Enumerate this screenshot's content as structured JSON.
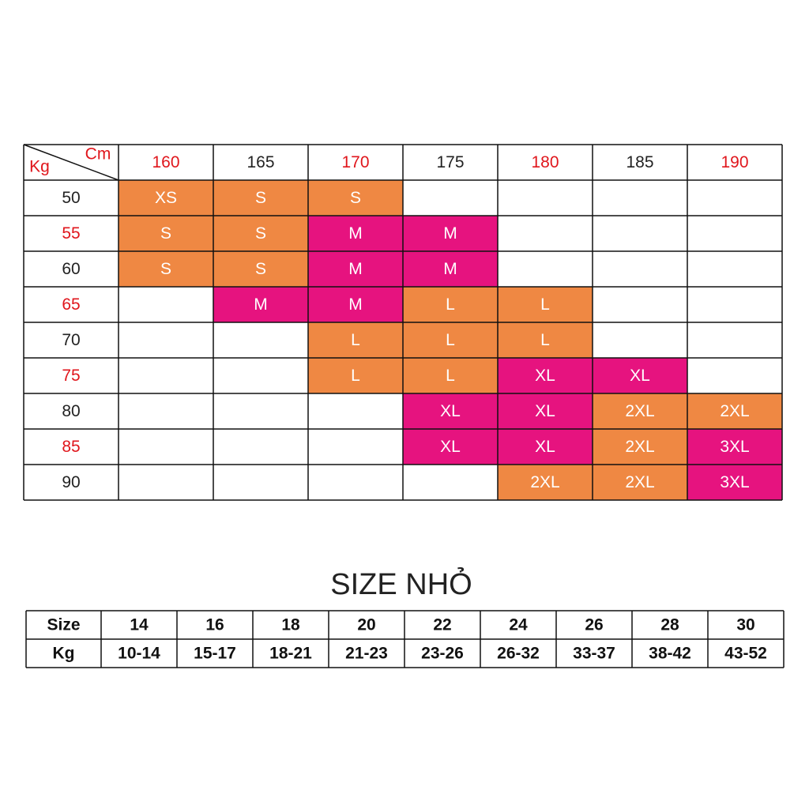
{
  "size_chart": {
    "corner_top": "Cm",
    "corner_bottom": "Kg",
    "heights": [
      "160",
      "165",
      "170",
      "175",
      "180",
      "185",
      "190"
    ],
    "rows": [
      {
        "kg": "50",
        "cells": [
          "XS",
          "S",
          "S",
          null,
          null,
          null,
          null
        ]
      },
      {
        "kg": "55",
        "cells": [
          "S",
          "S",
          "M",
          "M",
          null,
          null,
          null
        ]
      },
      {
        "kg": "60",
        "cells": [
          "S",
          "S",
          "M",
          "M",
          null,
          null,
          null
        ]
      },
      {
        "kg": "65",
        "cells": [
          null,
          "M",
          "M",
          "L",
          "L",
          null,
          null
        ]
      },
      {
        "kg": "70",
        "cells": [
          null,
          null,
          "L",
          "L",
          "L",
          null,
          null
        ]
      },
      {
        "kg": "75",
        "cells": [
          null,
          null,
          "L",
          "L",
          "XL",
          "XL",
          null
        ]
      },
      {
        "kg": "80",
        "cells": [
          null,
          null,
          null,
          "XL",
          "XL",
          "2XL",
          "2XL"
        ]
      },
      {
        "kg": "85",
        "cells": [
          null,
          null,
          null,
          "XL",
          "XL",
          "2XL",
          "3XL"
        ]
      },
      {
        "kg": "90",
        "cells": [
          null,
          null,
          null,
          null,
          "2XL",
          "2XL",
          "3XL"
        ]
      }
    ],
    "palette": {
      "XS": "#ef8843",
      "S": "#ef8843",
      "L": "#ef8843",
      "2XL": "#ef8843",
      "M": "#e6137f",
      "XL": "#e6137f",
      "3XL": "#e6137f"
    }
  },
  "small_sizes": {
    "title": "SIZE NHỎ",
    "size_label": "Size",
    "kg_label": "Kg",
    "sizes": [
      "14",
      "16",
      "18",
      "20",
      "22",
      "24",
      "26",
      "28",
      "30"
    ],
    "kg": [
      "10-14",
      "15-17",
      "18-21",
      "21-23",
      "23-26",
      "26-32",
      "33-37",
      "38-42",
      "43-52"
    ]
  }
}
